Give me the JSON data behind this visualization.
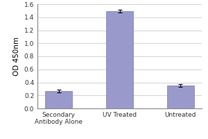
{
  "categories": [
    "Secondary\nAntibody Alone",
    "UV Treated",
    "Untreated"
  ],
  "values": [
    0.27,
    1.49,
    0.35
  ],
  "errors": [
    0.02,
    0.02,
    0.02
  ],
  "bar_color": "#9999cc",
  "bar_edgecolor": "#8888bb",
  "ylabel": "OD 450nm",
  "ylim": [
    0.0,
    1.6
  ],
  "yticks": [
    0.0,
    0.2,
    0.4,
    0.6,
    0.8,
    1.0,
    1.2,
    1.4,
    1.6
  ],
  "background_color": "#ffffff",
  "plot_bg_color": "#ffffff",
  "grid_color": "#cccccc",
  "tick_fontsize": 6.5,
  "label_fontsize": 7.5,
  "bar_width": 0.45
}
